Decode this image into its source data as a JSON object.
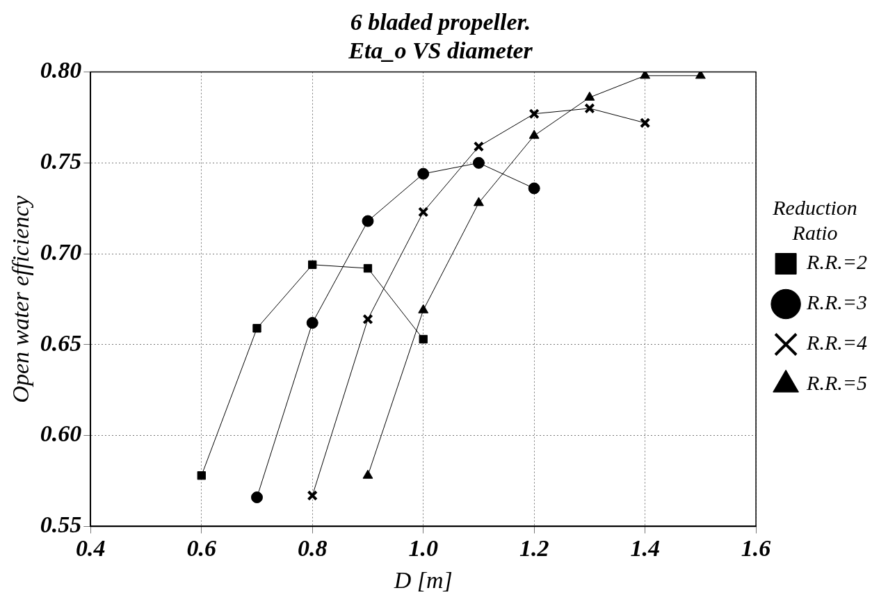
{
  "chart_data": {
    "type": "line",
    "title": [
      "6 bladed propeller.",
      "Eta_o VS diameter"
    ],
    "xlabel": "D [m]",
    "ylabel": "Open water efficiency",
    "legend_title": [
      "Reduction",
      "Ratio"
    ],
    "xlim": [
      0.4,
      1.6
    ],
    "xticks": [
      {
        "value": 0.4,
        "label": "0.4"
      },
      {
        "value": 0.6,
        "label": "0.6"
      },
      {
        "value": 0.8,
        "label": "0.8"
      },
      {
        "value": 1.0,
        "label": "1.0"
      },
      {
        "value": 1.2,
        "label": "1.2"
      },
      {
        "value": 1.4,
        "label": "1.4"
      },
      {
        "value": 1.6,
        "label": "1.6"
      }
    ],
    "ylim": [
      0.55,
      0.8
    ],
    "yticks": [
      {
        "value": 0.55,
        "label": "0.55"
      },
      {
        "value": 0.6,
        "label": "0.60"
      },
      {
        "value": 0.65,
        "label": "0.65"
      },
      {
        "value": 0.7,
        "label": "0.70"
      },
      {
        "value": 0.75,
        "label": "0.75"
      },
      {
        "value": 0.8,
        "label": "0.80"
      }
    ],
    "grid": true,
    "legend": "right",
    "line_style": "solid",
    "series": [
      {
        "name": "R.R.=2",
        "color": "#000000",
        "marker": "square",
        "x": [
          0.6,
          0.7,
          0.8,
          0.9,
          1.0
        ],
        "values": [
          0.578,
          0.659,
          0.694,
          0.692,
          0.653
        ]
      },
      {
        "name": "R.R.=3",
        "color": "#000000",
        "marker": "circle",
        "x": [
          0.7,
          0.8,
          0.9,
          1.0,
          1.1,
          1.2
        ],
        "values": [
          0.566,
          0.662,
          0.718,
          0.744,
          0.75,
          0.736
        ]
      },
      {
        "name": "R.R.=4",
        "color": "#000000",
        "marker": "cross",
        "x": [
          0.8,
          0.9,
          1.0,
          1.1,
          1.2,
          1.3,
          1.4
        ],
        "values": [
          0.567,
          0.664,
          0.723,
          0.759,
          0.777,
          0.78,
          0.772
        ]
      },
      {
        "name": "R.R.=5",
        "color": "#000000",
        "marker": "triangle",
        "x": [
          0.9,
          1.0,
          1.1,
          1.2,
          1.3,
          1.4,
          1.5
        ],
        "values": [
          0.578,
          0.669,
          0.728,
          0.765,
          0.786,
          0.798,
          0.798
        ]
      }
    ]
  }
}
